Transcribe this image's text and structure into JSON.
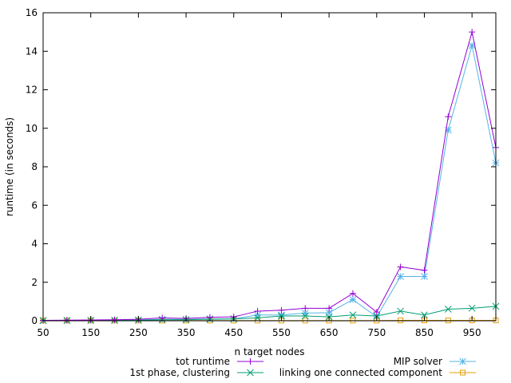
{
  "chart_data": {
    "type": "line",
    "title": "",
    "xlabel": "n target nodes",
    "ylabel": "runtime (in seconds)",
    "xlim": [
      50,
      1000
    ],
    "ylim": [
      0,
      16
    ],
    "xticks": [
      50,
      150,
      250,
      350,
      450,
      550,
      650,
      750,
      850,
      950
    ],
    "xtick_labels": [
      "50",
      "150",
      "250",
      "350",
      "450",
      "550",
      "650",
      "750",
      "850",
      "950"
    ],
    "yticks": [
      0,
      2,
      4,
      6,
      8,
      10,
      12,
      14,
      16
    ],
    "ytick_labels": [
      "0",
      "2",
      "4",
      "6",
      "8",
      "10",
      "12",
      "14",
      "16"
    ],
    "grid": false,
    "legend_position": "bottom",
    "x": [
      50,
      100,
      150,
      200,
      250,
      300,
      350,
      400,
      450,
      500,
      550,
      600,
      650,
      700,
      750,
      800,
      850,
      900,
      950,
      1000
    ],
    "series": [
      {
        "name": "tot runtime",
        "color": "#9400d3",
        "marker": "plus",
        "values": [
          0.02,
          0.03,
          0.04,
          0.05,
          0.08,
          0.15,
          0.12,
          0.18,
          0.2,
          0.5,
          0.55,
          0.65,
          0.65,
          1.42,
          0.45,
          2.8,
          2.62,
          10.6,
          15.0,
          9.0
        ]
      },
      {
        "name": "1st phase, clustering",
        "color": "#009e73",
        "marker": "x",
        "values": [
          0.01,
          0.01,
          0.02,
          0.02,
          0.03,
          0.05,
          0.05,
          0.08,
          0.1,
          0.15,
          0.25,
          0.25,
          0.2,
          0.3,
          0.25,
          0.5,
          0.3,
          0.6,
          0.65,
          0.75
        ]
      },
      {
        "name": "MIP solver",
        "color": "#56b4e9",
        "marker": "star",
        "values": [
          0.01,
          0.02,
          0.02,
          0.03,
          0.04,
          0.08,
          0.07,
          0.1,
          0.1,
          0.3,
          0.3,
          0.4,
          0.42,
          1.1,
          0.2,
          2.3,
          2.3,
          9.9,
          14.3,
          8.2
        ]
      },
      {
        "name": "linking one connected component",
        "color": "#e69f00",
        "marker": "square",
        "values": [
          0.01,
          0.01,
          0.01,
          0.01,
          0.01,
          0.01,
          0.01,
          0.01,
          0.01,
          0.01,
          0.01,
          0.01,
          0.01,
          0.01,
          0.01,
          0.02,
          0.02,
          0.02,
          0.02,
          0.02
        ]
      }
    ]
  }
}
